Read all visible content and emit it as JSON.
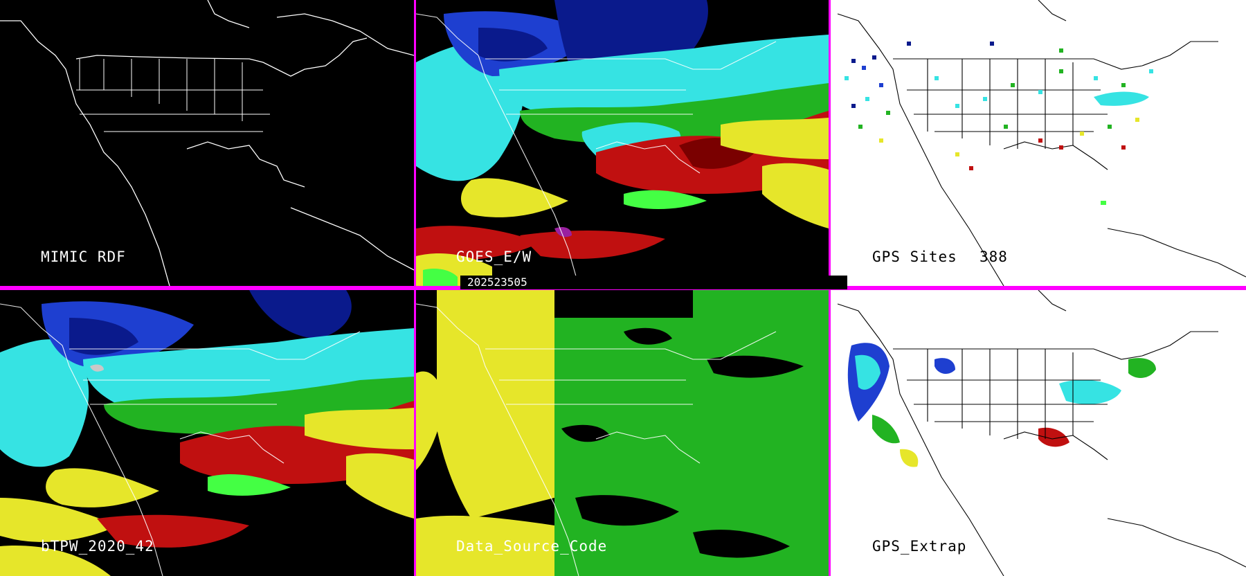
{
  "panels": [
    {
      "id": "mimic",
      "label": "MIMIC RDF",
      "theme": "dark"
    },
    {
      "id": "goes",
      "label": "GOES_E/W",
      "theme": "dark"
    },
    {
      "id": "gps_sites",
      "label": "GPS Sites",
      "count": "388",
      "theme": "light"
    },
    {
      "id": "btpw",
      "label": "bTPW_2020_42",
      "theme": "dark"
    },
    {
      "id": "dsc",
      "label": "Data_Source_Code",
      "theme": "dark"
    },
    {
      "id": "gps_extrap",
      "label": "GPS_Extrap",
      "theme": "light"
    }
  ],
  "timestamp": "202523505",
  "colors": {
    "separator": "#ff00ff",
    "palette": {
      "navy": "#0a1a8c",
      "blue": "#1e3fd0",
      "cyan": "#36e3e3",
      "green": "#22b322",
      "lime": "#44ff44",
      "yellow": "#e6e62a",
      "red": "#c01010",
      "maroon": "#7a0000",
      "magenta": "#9a20a0",
      "white": "#ffffff",
      "gray": "#c8c8c8"
    }
  }
}
